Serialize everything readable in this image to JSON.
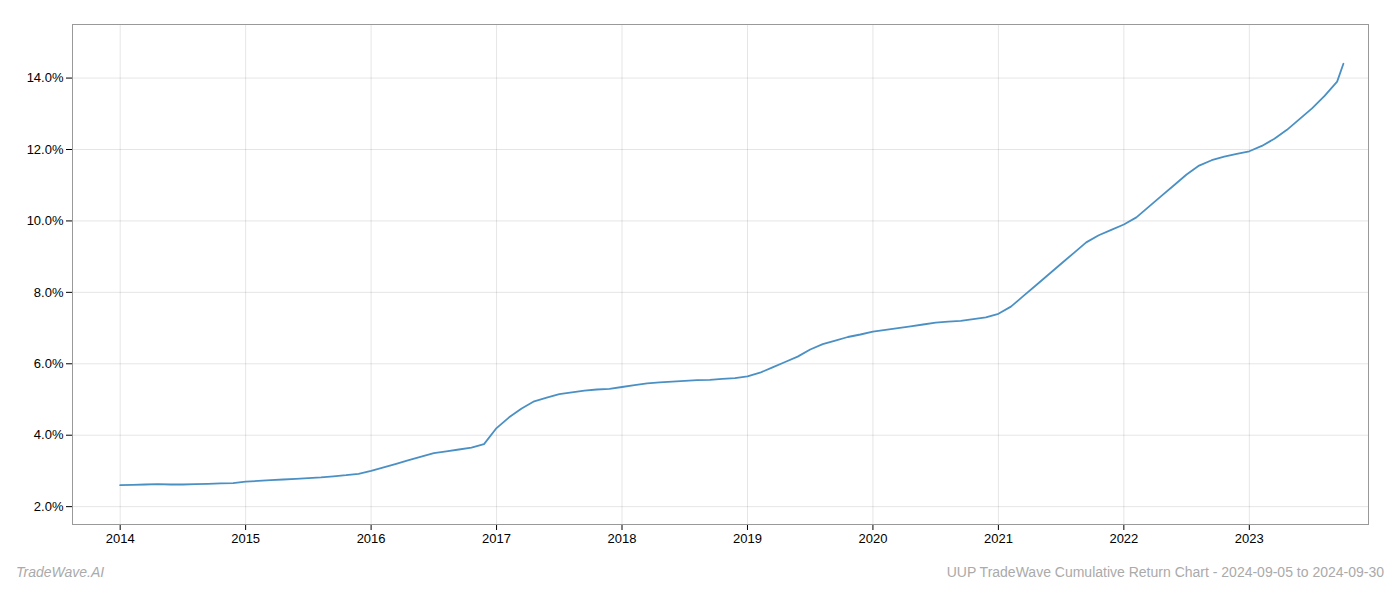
{
  "chart_data": {
    "type": "line",
    "title": "UUP TradeWave Cumulative Return Chart - 2024-09-05 to 2024-09-30",
    "annotations": [
      {
        "text": "TradeWave.AI"
      }
    ],
    "color": "#4a90c4",
    "x": [
      2014.0,
      2014.1,
      2014.2,
      2014.3,
      2014.4,
      2014.5,
      2014.6,
      2014.7,
      2014.8,
      2014.9,
      2015.0,
      2015.1,
      2015.2,
      2015.3,
      2015.4,
      2015.5,
      2015.6,
      2015.7,
      2015.8,
      2015.9,
      2016.0,
      2016.1,
      2016.2,
      2016.3,
      2016.4,
      2016.5,
      2016.6,
      2016.7,
      2016.8,
      2016.9,
      2017.0,
      2017.1,
      2017.2,
      2017.3,
      2017.4,
      2017.5,
      2017.6,
      2017.7,
      2017.8,
      2017.9,
      2018.0,
      2018.1,
      2018.2,
      2018.3,
      2018.4,
      2018.5,
      2018.6,
      2018.7,
      2018.8,
      2018.9,
      2019.0,
      2019.1,
      2019.2,
      2019.3,
      2019.4,
      2019.5,
      2019.6,
      2019.7,
      2019.8,
      2019.9,
      2020.0,
      2020.1,
      2020.2,
      2020.3,
      2020.4,
      2020.5,
      2020.6,
      2020.7,
      2020.8,
      2020.9,
      2021.0,
      2021.1,
      2021.2,
      2021.3,
      2021.4,
      2021.5,
      2021.6,
      2021.7,
      2021.8,
      2021.9,
      2022.0,
      2022.1,
      2022.2,
      2022.3,
      2022.4,
      2022.5,
      2022.6,
      2022.7,
      2022.8,
      2022.9,
      2023.0,
      2023.1,
      2023.2,
      2023.3,
      2023.4,
      2023.5,
      2023.6,
      2023.7,
      2023.75
    ],
    "values": [
      2.6,
      2.61,
      2.62,
      2.63,
      2.62,
      2.62,
      2.63,
      2.64,
      2.65,
      2.66,
      2.7,
      2.72,
      2.74,
      2.76,
      2.78,
      2.8,
      2.82,
      2.85,
      2.88,
      2.92,
      3.0,
      3.1,
      3.2,
      3.3,
      3.4,
      3.5,
      3.55,
      3.6,
      3.65,
      3.75,
      4.2,
      4.5,
      4.75,
      4.95,
      5.05,
      5.15,
      5.2,
      5.25,
      5.28,
      5.3,
      5.35,
      5.4,
      5.45,
      5.48,
      5.5,
      5.52,
      5.54,
      5.55,
      5.58,
      5.6,
      5.65,
      5.75,
      5.9,
      6.05,
      6.2,
      6.4,
      6.55,
      6.65,
      6.75,
      6.82,
      6.9,
      6.95,
      7.0,
      7.05,
      7.1,
      7.15,
      7.18,
      7.2,
      7.25,
      7.3,
      7.4,
      7.6,
      7.9,
      8.2,
      8.5,
      8.8,
      9.1,
      9.4,
      9.6,
      9.75,
      9.9,
      10.1,
      10.4,
      10.7,
      11.0,
      11.3,
      11.55,
      11.7,
      11.8,
      11.88,
      11.95,
      12.1,
      12.3,
      12.55,
      12.85,
      13.15,
      13.5,
      13.9,
      14.4
    ],
    "xlim": [
      2013.62,
      2023.95
    ],
    "ylim": [
      1.5,
      15.5
    ],
    "xticks": [
      2014,
      2015,
      2016,
      2017,
      2018,
      2019,
      2020,
      2021,
      2022,
      2023
    ],
    "yticks": [
      {
        "value": 2.0,
        "label": "2.0%"
      },
      {
        "value": 4.0,
        "label": "4.0%"
      },
      {
        "value": 6.0,
        "label": "6.0%"
      },
      {
        "value": 8.0,
        "label": "8.0%"
      },
      {
        "value": 10.0,
        "label": "10.0%"
      },
      {
        "value": 12.0,
        "label": "12.0%"
      },
      {
        "value": 14.0,
        "label": "14.0%"
      }
    ],
    "grid": true
  }
}
